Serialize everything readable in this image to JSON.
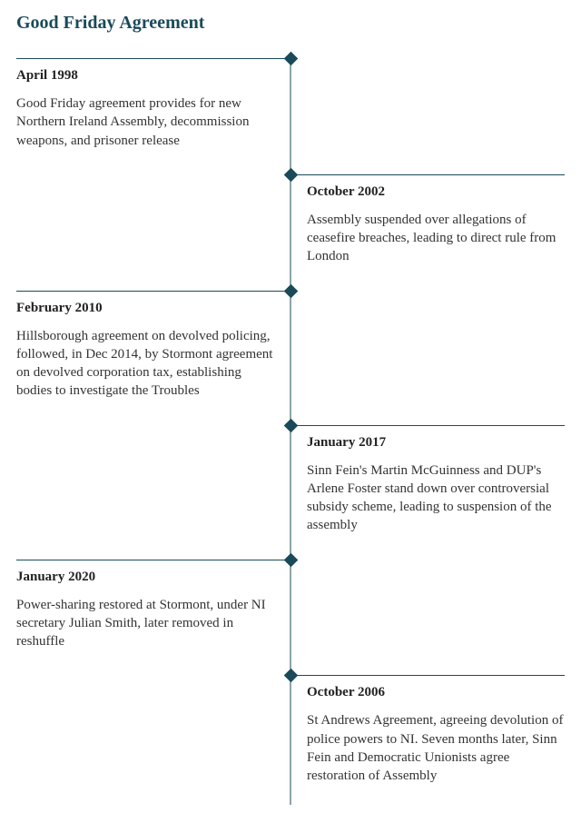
{
  "title": "Good Friday Agreement",
  "colors": {
    "accent": "#1a4a5a",
    "text": "#333333",
    "background": "#ffffff"
  },
  "typography": {
    "title_fontsize": 20,
    "date_fontsize": 15,
    "body_fontsize": 15,
    "font_family": "Georgia, serif"
  },
  "layout": {
    "type": "vertical-timeline",
    "center_line": true,
    "marker_shape": "diamond",
    "marker_size": 11
  },
  "events": [
    {
      "side": "left",
      "date": "April 1998",
      "text": "Good Friday agreement provides for new Northern Ireland Assembly, decommission weapons, and prisoner release"
    },
    {
      "side": "right",
      "date": "October 2002",
      "text": "Assembly suspended over allegations of ceasefire breaches, leading to direct rule from London"
    },
    {
      "side": "left",
      "date": "February 2010",
      "text": "Hillsborough agreement on devolved policing, followed, in Dec 2014, by Stormont agreement on devolved corporation tax, establishing bodies to investigate the Troubles"
    },
    {
      "side": "right",
      "date": "January 2017",
      "text": "Sinn Fein's Martin McGuinness and DUP's Arlene Foster stand down over controversial subsidy scheme, leading to suspension of the assembly"
    },
    {
      "side": "left",
      "date": "January 2020",
      "text": "Power-sharing restored at Stormont, under NI secretary Julian Smith, later removed in reshuffle"
    },
    {
      "side": "right",
      "date": "October 2006",
      "text": "St Andrews Agreement, agreeing devolution of police powers to NI. Seven months later, Sinn Fein and Democratic Unionists agree restoration of Assembly"
    }
  ]
}
